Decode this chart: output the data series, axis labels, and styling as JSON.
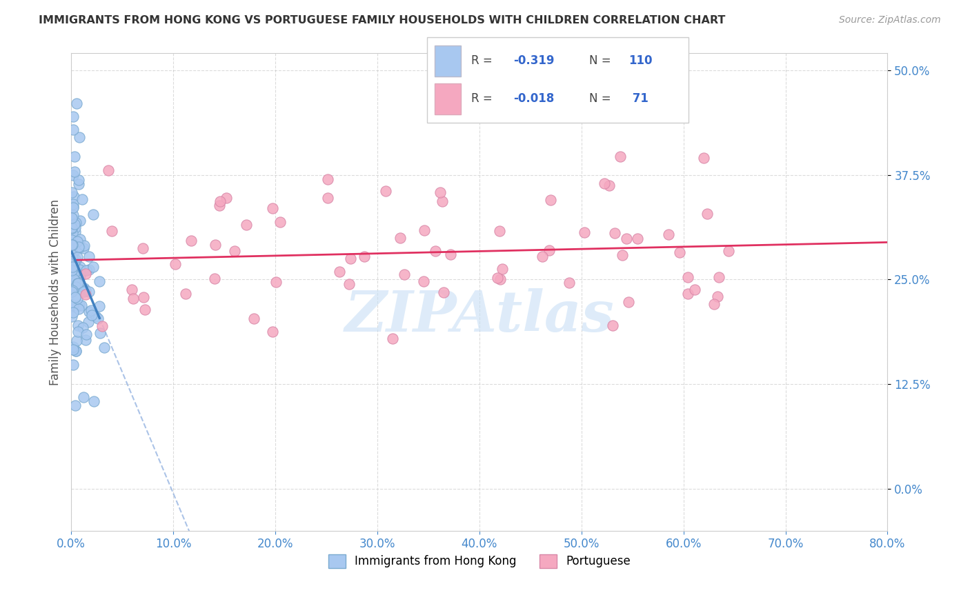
{
  "title": "IMMIGRANTS FROM HONG KONG VS PORTUGUESE FAMILY HOUSEHOLDS WITH CHILDREN CORRELATION CHART",
  "source": "Source: ZipAtlas.com",
  "ylabel": "Family Households with Children",
  "color_hk": "#a8c8f0",
  "color_hk_edge": "#7aaad0",
  "color_pt": "#f5a8c0",
  "color_pt_edge": "#d888a8",
  "color_hk_line": "#4080c0",
  "color_pt_line": "#e03060",
  "color_hk_dash": "#88aadd",
  "watermark": "ZIPAtlas",
  "watermark_color": "#c8dff5",
  "xlim": [
    0.0,
    80.0
  ],
  "ylim": [
    -5.0,
    52.0
  ],
  "ytick_vals": [
    0.0,
    12.5,
    25.0,
    37.5,
    50.0
  ],
  "ytick_labels": [
    "0.0%",
    "12.5%",
    "25.0%",
    "37.5%",
    "50.0%"
  ],
  "xtick_vals": [
    0,
    10,
    20,
    30,
    40,
    50,
    60,
    70,
    80
  ],
  "xtick_labels": [
    "0.0%",
    "10.0%",
    "20.0%",
    "30.0%",
    "40.0%",
    "50.0%",
    "60.0%",
    "70.0%",
    "80.0%"
  ],
  "legend_entries": [
    {
      "r": "-0.319",
      "n": "110",
      "color": "#a8c8f0"
    },
    {
      "r": "-0.018",
      "n": " 71",
      "color": "#f5a8c0"
    }
  ],
  "hk_seed": 42,
  "pt_seed": 99
}
